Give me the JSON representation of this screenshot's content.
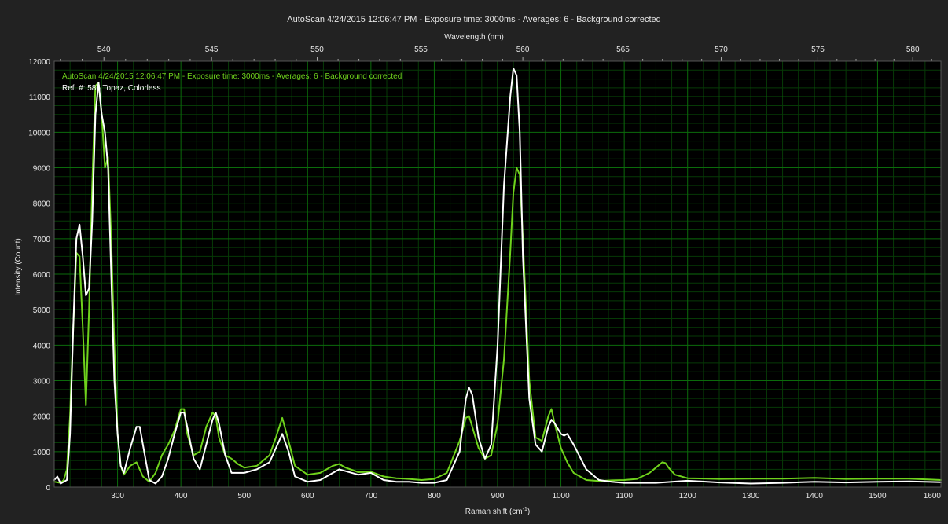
{
  "chart_data": {
    "type": "line",
    "title": "AutoScan 4/24/2015 12:06:47 PM - Exposure time: 3000ms - Averages: 6 - Background corrected",
    "top_axis_label": "Wavelength (nm)",
    "top_axis_ticks": [
      540,
      545,
      550,
      555,
      560,
      565,
      570,
      575,
      580
    ],
    "xlabel": "Raman shift",
    "xlabel_unit": "(cm",
    "xlabel_unit_sup": "-1",
    "xlabel_unit_close": ")",
    "ylabel": "Intensity (Count)",
    "xlim": [
      200,
      1600
    ],
    "ylim": [
      0,
      12000
    ],
    "x_ticks": [
      300,
      400,
      500,
      600,
      700,
      800,
      900,
      1000,
      1100,
      1200,
      1300,
      1400,
      1500,
      1600
    ],
    "y_ticks": [
      0,
      1000,
      2000,
      3000,
      4000,
      5000,
      6000,
      7000,
      8000,
      9000,
      10000,
      11000,
      12000
    ],
    "grid": true,
    "legend_position": "top-left",
    "colors": {
      "background": "#222222",
      "plot_background": "#000000",
      "grid_major": "#0b6b0b",
      "grid_minor": "#063a06",
      "axis_text": "#e6e6e6",
      "green_series": "#6fd21c",
      "white_series": "#ffffff"
    },
    "series": [
      {
        "name": "AutoScan 4/24/2015 12:06:47 PM - Exposure time: 3000ms - Averages: 6 - Background corrected",
        "color": "#6fd21c",
        "x": [
          200,
          210,
          215,
          220,
          225,
          230,
          235,
          240,
          245,
          250,
          255,
          260,
          265,
          270,
          275,
          280,
          285,
          290,
          295,
          300,
          305,
          310,
          320,
          330,
          340,
          350,
          360,
          370,
          380,
          390,
          400,
          405,
          410,
          420,
          430,
          440,
          450,
          455,
          460,
          470,
          480,
          490,
          500,
          520,
          540,
          550,
          560,
          570,
          580,
          600,
          620,
          640,
          650,
          660,
          680,
          700,
          720,
          740,
          760,
          780,
          800,
          820,
          840,
          850,
          855,
          860,
          870,
          880,
          890,
          900,
          910,
          920,
          925,
          930,
          935,
          940,
          950,
          960,
          970,
          980,
          985,
          990,
          1000,
          1010,
          1020,
          1040,
          1060,
          1080,
          1100,
          1120,
          1140,
          1150,
          1160,
          1165,
          1170,
          1180,
          1200,
          1250,
          1300,
          1350,
          1400,
          1450,
          1500,
          1550,
          1600
        ],
        "values": [
          150,
          120,
          200,
          500,
          2000,
          4500,
          6600,
          6500,
          4500,
          2300,
          5000,
          8500,
          11300,
          11400,
          10500,
          9000,
          9300,
          7000,
          4000,
          1500,
          600,
          350,
          600,
          700,
          300,
          150,
          400,
          900,
          1200,
          1600,
          2200,
          2200,
          1500,
          900,
          1000,
          1700,
          2100,
          2000,
          1400,
          900,
          800,
          650,
          550,
          600,
          900,
          1400,
          1950,
          1300,
          600,
          350,
          400,
          600,
          650,
          550,
          420,
          430,
          300,
          250,
          230,
          200,
          230,
          400,
          1300,
          1950,
          2000,
          1700,
          1100,
          800,
          900,
          1800,
          3600,
          6600,
          8300,
          9000,
          8800,
          7000,
          3000,
          1400,
          1300,
          2000,
          2200,
          1800,
          1100,
          700,
          400,
          200,
          170,
          190,
          200,
          230,
          400,
          550,
          700,
          680,
          550,
          350,
          250,
          230,
          240,
          240,
          260,
          230,
          240,
          240,
          200
        ]
      },
      {
        "name": "Ref. #: 586 Topaz, Colorless",
        "color": "#ffffff",
        "x": [
          200,
          205,
          210,
          215,
          220,
          225,
          230,
          235,
          240,
          245,
          250,
          255,
          260,
          265,
          270,
          275,
          280,
          285,
          290,
          295,
          300,
          305,
          310,
          320,
          330,
          335,
          340,
          350,
          360,
          370,
          380,
          390,
          400,
          405,
          410,
          420,
          430,
          440,
          450,
          455,
          460,
          470,
          480,
          500,
          520,
          540,
          550,
          560,
          570,
          580,
          600,
          620,
          640,
          650,
          660,
          680,
          700,
          720,
          740,
          760,
          780,
          800,
          820,
          840,
          850,
          855,
          860,
          870,
          880,
          890,
          900,
          910,
          920,
          925,
          930,
          935,
          940,
          950,
          960,
          970,
          980,
          985,
          990,
          1000,
          1005,
          1010,
          1020,
          1040,
          1060,
          1080,
          1100,
          1150,
          1200,
          1250,
          1300,
          1350,
          1400,
          1450,
          1500,
          1550,
          1600
        ],
        "values": [
          200,
          300,
          100,
          150,
          200,
          1500,
          4500,
          7000,
          7400,
          6500,
          5400,
          5600,
          7500,
          10500,
          11400,
          10500,
          10000,
          9000,
          6000,
          3000,
          1500,
          600,
          400,
          1100,
          1700,
          1700,
          1200,
          200,
          100,
          300,
          800,
          1500,
          2100,
          2100,
          1700,
          800,
          500,
          1200,
          1900,
          2100,
          1800,
          900,
          400,
          400,
          500,
          700,
          1100,
          1500,
          1000,
          300,
          150,
          200,
          400,
          500,
          450,
          350,
          400,
          200,
          150,
          150,
          120,
          120,
          200,
          1000,
          2500,
          2800,
          2600,
          1400,
          800,
          1200,
          4000,
          8500,
          11000,
          11800,
          11600,
          10000,
          6500,
          2500,
          1200,
          1000,
          1700,
          1900,
          1800,
          1500,
          1450,
          1500,
          1200,
          500,
          200,
          150,
          120,
          120,
          180,
          130,
          100,
          120,
          150,
          130,
          150,
          160,
          140
        ]
      }
    ]
  }
}
